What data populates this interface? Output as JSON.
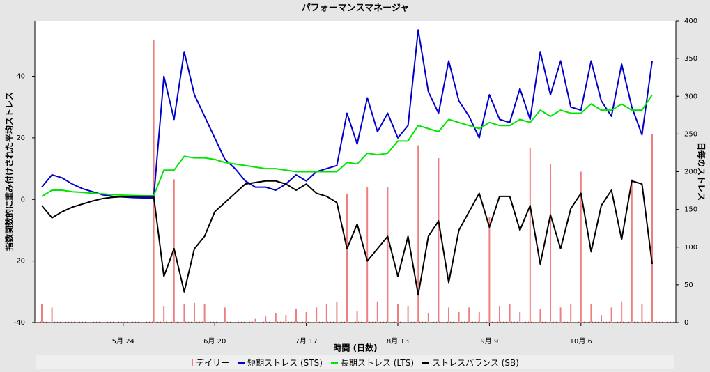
{
  "chart_data": {
    "type": "line",
    "title": "パフォーマンスマネージャ",
    "x_label": "時間 (日数)",
    "y_label": "指数関数的に重み付けされた平均ストレス",
    "y2_label": "日毎のストレス",
    "categories": [
      null,
      null,
      null,
      null,
      null,
      null,
      null,
      null,
      "5月 24",
      null,
      null,
      null,
      null,
      null,
      null,
      null,
      null,
      "6月 20",
      null,
      null,
      null,
      null,
      null,
      null,
      null,
      null,
      "7月 17",
      null,
      null,
      null,
      null,
      null,
      null,
      null,
      null,
      "8月 13",
      null,
      null,
      null,
      null,
      null,
      null,
      null,
      null,
      "9月 9",
      null,
      null,
      null,
      null,
      null,
      null,
      null,
      null,
      "10月 6",
      null,
      null,
      null,
      null,
      null,
      null,
      null
    ],
    "ylim": [
      -40,
      58
    ],
    "yticks": [
      -40,
      -20,
      0,
      20,
      40
    ],
    "y2lim": [
      0,
      400
    ],
    "y2ticks": [
      0,
      50,
      100,
      150,
      200,
      250,
      300,
      350,
      400
    ],
    "grid": false,
    "legend": "bottom",
    "series": [
      {
        "name": "デイリー",
        "type": "bar",
        "axis": "y2",
        "color": "#ee7f7f",
        "values": [
          25,
          20,
          0,
          0,
          0,
          0,
          0,
          0,
          0,
          0,
          0,
          375,
          22,
          190,
          24,
          26,
          25,
          0,
          20,
          0,
          0,
          5,
          8,
          12,
          10,
          18,
          14,
          20,
          25,
          27,
          170,
          15,
          180,
          28,
          180,
          24,
          22,
          235,
          12,
          218,
          20,
          14,
          20,
          14,
          140,
          22,
          25,
          14,
          232,
          18,
          210,
          20,
          24,
          200,
          24,
          10,
          20,
          28,
          190,
          25,
          250
        ]
      },
      {
        "name": "短期ストレス (STS)",
        "type": "line",
        "color": "#0000cc",
        "values": [
          4,
          8,
          7,
          5,
          3.5,
          2.5,
          1.5,
          1,
          0.8,
          0.6,
          0.5,
          0.5,
          40,
          26,
          48,
          34,
          27,
          20,
          13,
          10,
          6,
          4,
          4,
          3,
          5,
          8,
          6,
          9,
          10,
          11,
          28,
          18,
          33,
          22,
          28,
          20,
          24,
          55,
          35,
          28,
          45,
          32,
          27,
          20,
          34,
          26,
          25,
          36,
          26,
          48,
          34,
          45,
          30,
          29,
          45,
          32,
          27,
          44,
          30,
          21,
          45
        ]
      },
      {
        "name": "長期ストレス (LTS)",
        "type": "line",
        "color": "#00e600",
        "values": [
          1,
          3,
          3,
          2.5,
          2.3,
          2,
          1.8,
          1.6,
          1.4,
          1.3,
          1.2,
          1.2,
          9.5,
          9.5,
          14,
          13.5,
          13.5,
          13,
          12,
          11.5,
          11,
          10.5,
          10,
          10,
          9.5,
          9,
          9,
          9,
          9,
          9,
          12,
          11.5,
          15,
          14.5,
          15,
          19,
          19,
          24,
          23,
          22,
          26,
          25,
          24,
          23,
          25,
          24,
          24,
          26,
          25,
          29,
          27,
          29,
          28,
          28,
          31,
          29,
          29,
          31,
          29,
          29,
          34
        ]
      },
      {
        "name": "ストレスバランス (SB)",
        "type": "line",
        "color": "#000000",
        "values": [
          -2,
          -6,
          -4,
          -2.5,
          -1.5,
          -0.5,
          0.3,
          0.7,
          0.9,
          1,
          1,
          1,
          -25,
          -16,
          -30,
          -16,
          -12,
          -4,
          -1,
          2,
          5,
          5.5,
          6,
          6,
          5,
          3,
          5,
          2,
          1,
          -1,
          -16,
          -8,
          -20,
          -16,
          -12,
          -25,
          -12,
          -31,
          -12,
          -7,
          -27,
          -10,
          -4,
          2,
          -9,
          1,
          1,
          -10,
          -2,
          -21,
          -5,
          -16,
          -3,
          2,
          -17,
          -2,
          3,
          -13,
          6,
          5,
          -21
        ]
      }
    ]
  }
}
